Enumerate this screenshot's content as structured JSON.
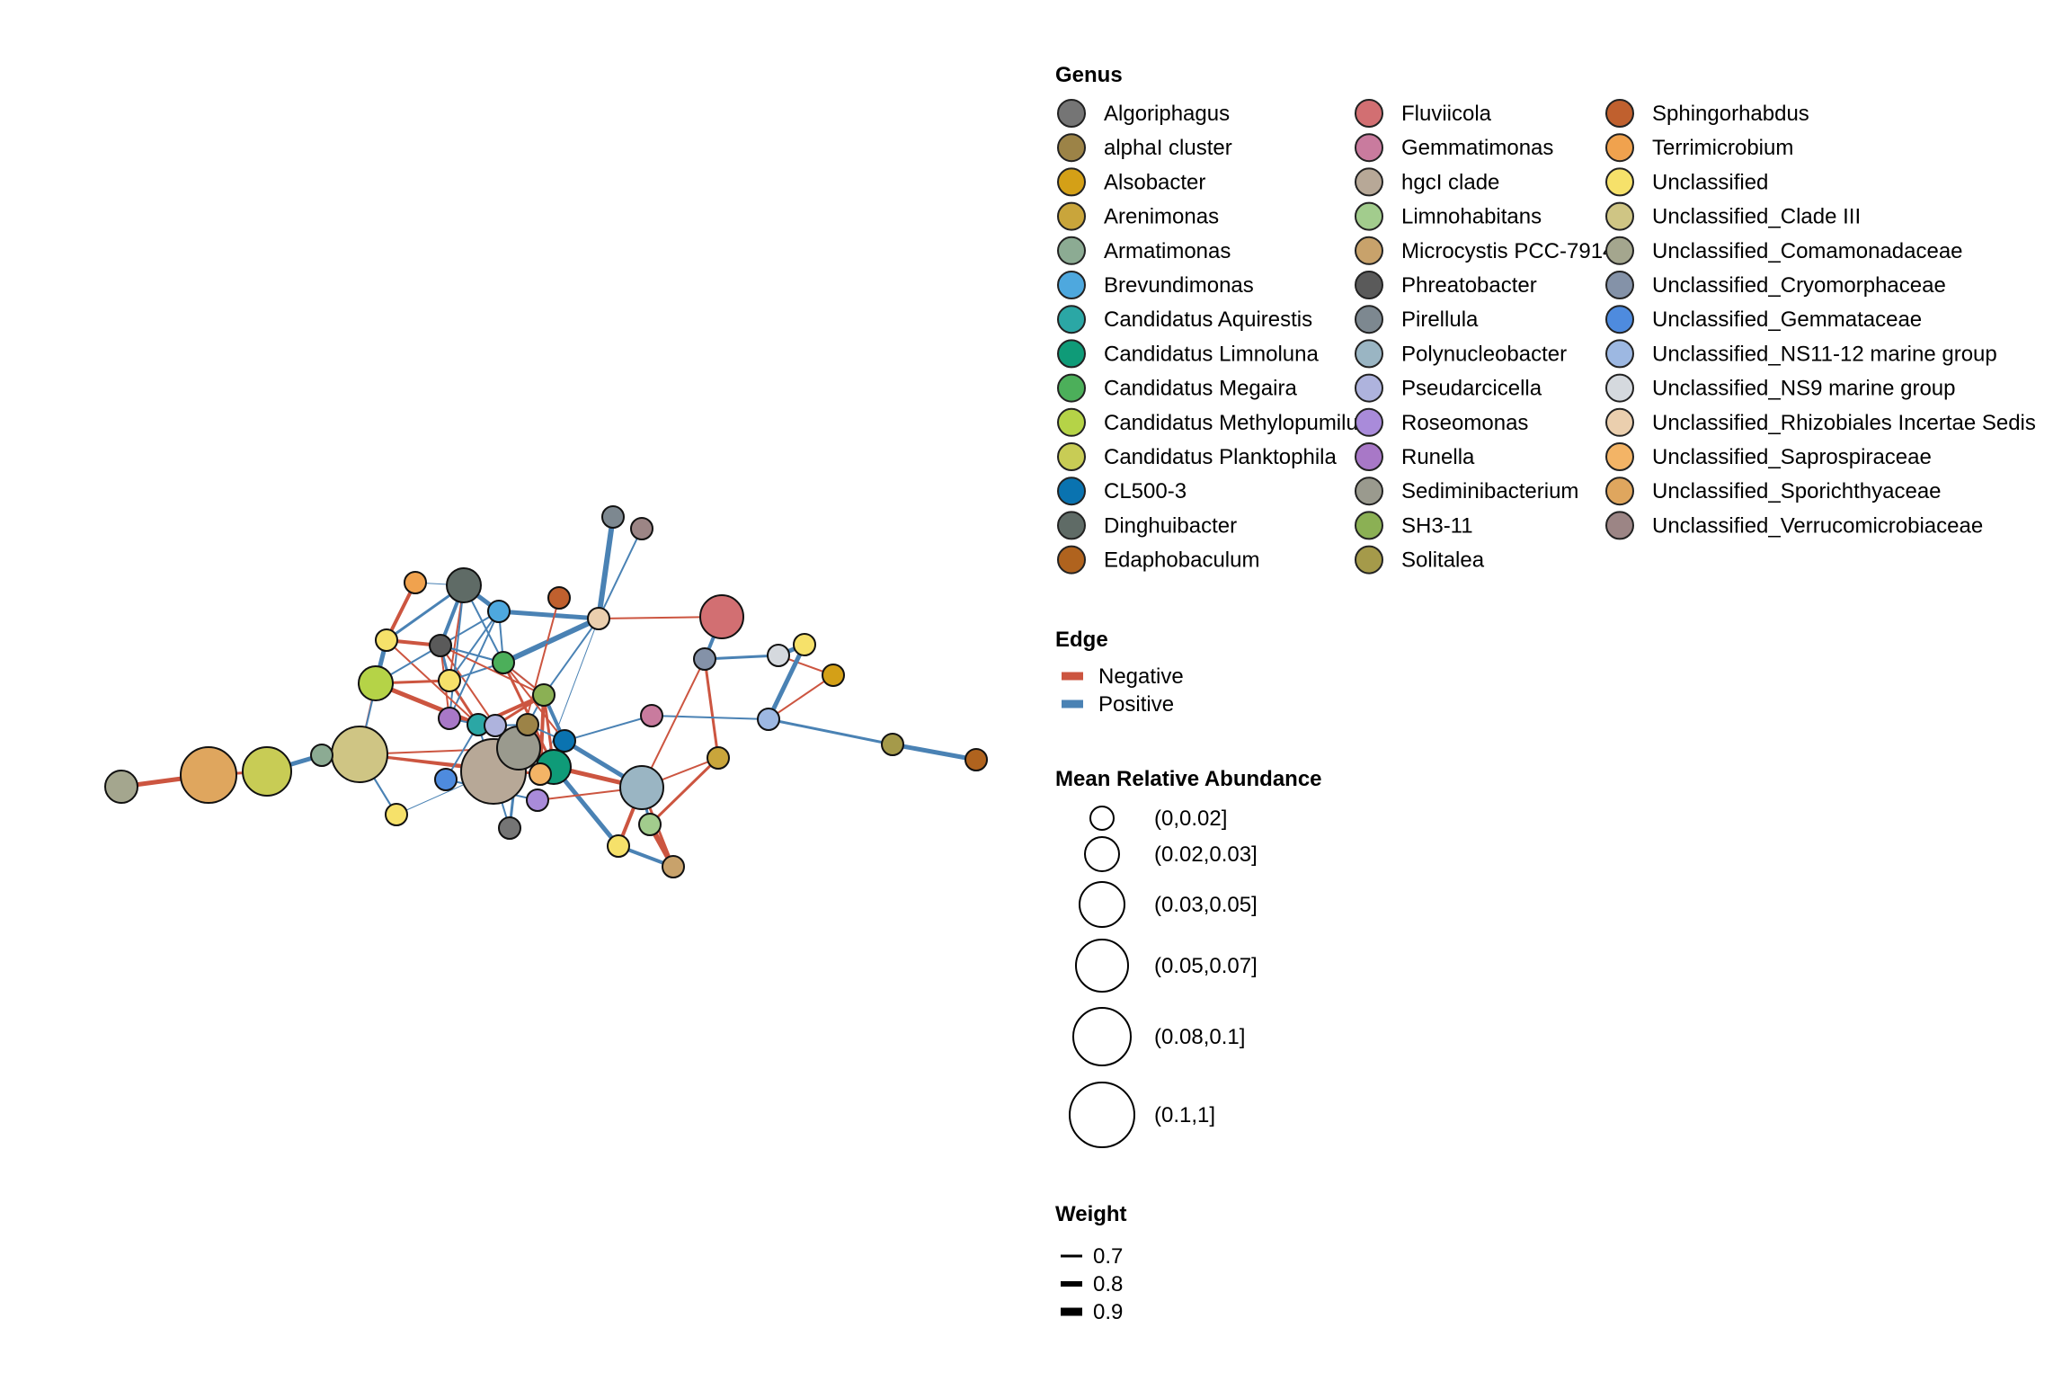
{
  "legend": {
    "genus_title": "Genus",
    "edge_title": "Edge",
    "abundance_title": "Mean Relative Abundance",
    "weight_title": "Weight"
  },
  "genus": [
    {
      "name": "Algoriphagus",
      "color": "#757575"
    },
    {
      "name": "alphaI cluster",
      "color": "#9C8347"
    },
    {
      "name": "Alsobacter",
      "color": "#D4A017"
    },
    {
      "name": "Arenimonas",
      "color": "#C9A53B"
    },
    {
      "name": "Armatimonas",
      "color": "#8CAB93"
    },
    {
      "name": "Brevundimonas",
      "color": "#4EA8DE"
    },
    {
      "name": "Candidatus Aquirestis",
      "color": "#2BA7A5"
    },
    {
      "name": "Candidatus Limnoluna",
      "color": "#0F9B78"
    },
    {
      "name": "Candidatus Megaira",
      "color": "#4CAF5A"
    },
    {
      "name": "Candidatus Methylopumilus",
      "color": "#B5D347"
    },
    {
      "name": "Candidatus Planktophila",
      "color": "#C8CC55"
    },
    {
      "name": "CL500-3",
      "color": "#0A73B0"
    },
    {
      "name": "Dinghuibacter",
      "color": "#5F6B66"
    },
    {
      "name": "Edaphobaculum",
      "color": "#B0631E"
    },
    {
      "name": "Fluviicola",
      "color": "#D26F72"
    },
    {
      "name": "Gemmatimonas",
      "color": "#C97B9E"
    },
    {
      "name": "hgcI clade",
      "color": "#B7A897"
    },
    {
      "name": "Limnohabitans",
      "color": "#A2CC8D"
    },
    {
      "name": "Microcystis PCC-7914",
      "color": "#C8A26B"
    },
    {
      "name": "Phreatobacter",
      "color": "#5A5A5A"
    },
    {
      "name": "Pirellula",
      "color": "#7D8890"
    },
    {
      "name": "Polynucleobacter",
      "color": "#9AB5C3"
    },
    {
      "name": "Pseudarcicella",
      "color": "#AEB3DD"
    },
    {
      "name": "Roseomonas",
      "color": "#A98BDA"
    },
    {
      "name": "Runella",
      "color": "#A878C7"
    },
    {
      "name": "Sediminibacterium",
      "color": "#9A9A8E"
    },
    {
      "name": "SH3-11",
      "color": "#8BB054"
    },
    {
      "name": "Solitalea",
      "color": "#A59A4A"
    },
    {
      "name": "Sphingorhabdus",
      "color": "#C0602E"
    },
    {
      "name": "Terrimicrobium",
      "color": "#F0A24E"
    },
    {
      "name": "Unclassified",
      "color": "#F6E16A"
    },
    {
      "name": "Unclassified_Clade III",
      "color": "#CFC584"
    },
    {
      "name": "Unclassified_Comamonadaceae",
      "color": "#A4A68E"
    },
    {
      "name": "Unclassified_Cryomorphaceae",
      "color": "#8492A8"
    },
    {
      "name": "Unclassified_Gemmataceae",
      "color": "#4E8BDE"
    },
    {
      "name": "Unclassified_NS11-12 marine group",
      "color": "#9DB8E2"
    },
    {
      "name": "Unclassified_NS9 marine group",
      "color": "#D5D9DE"
    },
    {
      "name": "Unclassified_Rhizobiales Incertae Sedis",
      "color": "#EBCFAE"
    },
    {
      "name": "Unclassified_Saprospiraceae",
      "color": "#F3B466"
    },
    {
      "name": "Unclassified_Sporichthyaceae",
      "color": "#DFA65E"
    },
    {
      "name": "Unclassified_Verrucomicrobiaceae",
      "color": "#9C8585"
    }
  ],
  "edge_types": [
    {
      "name": "Negative",
      "color": "#CC5540"
    },
    {
      "name": "Positive",
      "color": "#4A82B4"
    }
  ],
  "abundance_bins": [
    {
      "label": "(0,0.02]",
      "value": 0.01
    },
    {
      "label": "(0.02,0.03]",
      "value": 0.025
    },
    {
      "label": "(0.03,0.05]",
      "value": 0.04
    },
    {
      "label": "(0.05,0.07]",
      "value": 0.06
    },
    {
      "label": "(0.08,0.1]",
      "value": 0.09
    },
    {
      "label": "(0.1,1]",
      "value": 0.12
    }
  ],
  "weights": [
    {
      "label": "0.7",
      "value": 0.7
    },
    {
      "label": "0.8",
      "value": 0.8
    },
    {
      "label": "0.9",
      "value": 0.9
    }
  ]
}
